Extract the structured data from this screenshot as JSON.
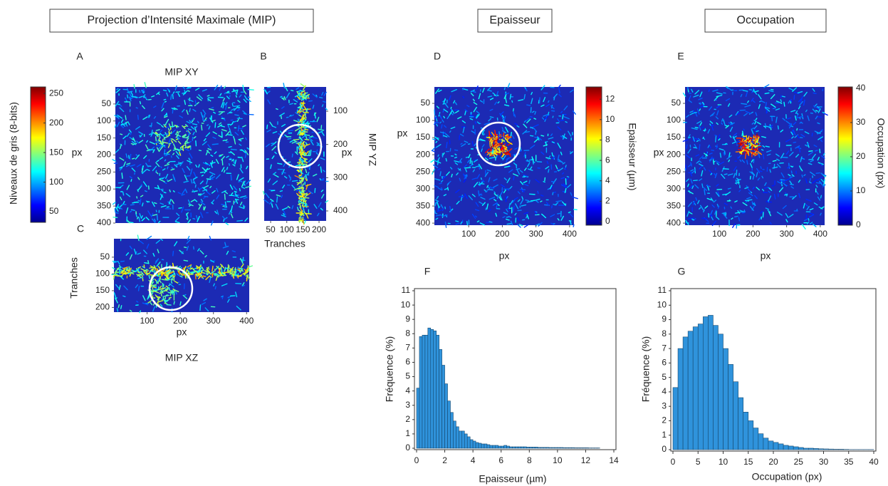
{
  "sections": [
    "Projection d’Intensité Maximale (MIP)",
    "Epaisseur",
    "Occupation"
  ],
  "chart_data": [
    {
      "type": "image",
      "panel": "A",
      "title": "MIP XY",
      "ylabel": "px",
      "ylim": [
        0,
        400
      ],
      "yticks": [
        50,
        100,
        150,
        200,
        250,
        300,
        350,
        400
      ],
      "colorbar": {
        "label": "Niveaux de gris (8-bits)",
        "lim": [
          32,
          261
        ],
        "ticks": [
          50,
          100,
          150,
          200,
          250
        ]
      }
    },
    {
      "type": "image",
      "panel": "B",
      "title": "MIP YZ",
      "ylabel": "px",
      "xlabel": "Tranches",
      "ylim": [
        27,
        430
      ],
      "yticks": [
        100,
        200,
        300,
        400
      ],
      "xlim": [
        30,
        222
      ],
      "xticks": [
        50,
        100,
        150,
        200
      ]
    },
    {
      "type": "image",
      "panel": "C",
      "title": "MIP XZ",
      "ylabel": "Tranches",
      "xlabel": "px",
      "ylim": [
        -5,
        214
      ],
      "yticks": [
        50,
        100,
        150,
        200
      ],
      "xlim": [
        0,
        408
      ],
      "xticks": [
        100,
        200,
        300,
        400
      ]
    },
    {
      "type": "image",
      "panel": "D",
      "ylabel": "px",
      "xlabel": "px",
      "ylim": [
        2,
        406
      ],
      "yticks": [
        50,
        100,
        150,
        200,
        250,
        300,
        350,
        400
      ],
      "xlim": [
        -2,
        413
      ],
      "xticks": [
        100,
        200,
        300,
        400
      ],
      "colorbar": {
        "label": "Epaisseur (µm)",
        "lim": [
          -0.35,
          13.2
        ],
        "ticks": [
          0,
          2,
          4,
          6,
          8,
          10,
          12
        ]
      }
    },
    {
      "type": "image",
      "panel": "E",
      "ylabel": "px",
      "xlabel": "px",
      "ylim": [
        2,
        406
      ],
      "yticks": [
        50,
        100,
        150,
        200,
        250,
        300,
        350,
        400
      ],
      "xlim": [
        -2,
        413
      ],
      "xticks": [
        100,
        200,
        300,
        400
      ],
      "colorbar": {
        "label": "Occupation (px)",
        "lim": [
          0,
          40.4
        ],
        "ticks": [
          0,
          10,
          20,
          30,
          40
        ]
      }
    },
    {
      "type": "histogram",
      "panel": "F",
      "xlabel": "Epaisseur (µm)",
      "ylabel": "Fréquence (%)",
      "color": "#2f93dc",
      "xlim": [
        0,
        14
      ],
      "xticks": [
        0,
        2,
        4,
        6,
        8,
        10,
        12,
        14
      ],
      "ylim": [
        0,
        11
      ],
      "yticks": [
        0,
        1,
        2,
        3,
        4,
        5,
        6,
        7,
        8,
        9,
        10,
        11
      ],
      "bins": [
        0,
        0.2,
        0.4,
        0.6,
        0.8,
        1,
        1.2,
        1.4,
        1.6,
        1.8,
        2,
        2.2,
        2.4,
        2.6,
        2.8,
        3,
        3.2,
        3.4,
        3.6,
        3.8,
        4,
        4.2,
        4.4,
        4.6,
        4.8,
        5,
        5.2,
        5.4,
        5.6,
        5.8,
        6,
        6.2,
        6.4,
        6.6,
        6.8,
        7,
        7.2,
        7.4,
        7.6,
        7.8,
        8,
        8.2,
        8.4,
        8.6,
        8.8,
        9,
        9.2,
        9.4,
        9.6,
        9.8,
        10,
        10.2,
        10.4,
        10.6,
        10.8,
        11,
        11.2,
        11.4,
        11.6,
        11.8,
        12,
        12.2,
        12.4,
        12.6,
        12.8,
        13
      ],
      "values": [
        4.2,
        7.8,
        7.9,
        7.9,
        8.4,
        8.3,
        8.2,
        7.9,
        6.9,
        5.8,
        4.5,
        3.3,
        2.5,
        1.9,
        1.5,
        1.2,
        1.2,
        1.0,
        0.8,
        0.6,
        0.5,
        0.4,
        0.35,
        0.3,
        0.3,
        0.25,
        0.2,
        0.2,
        0.2,
        0.15,
        0.15,
        0.2,
        0.15,
        0.1,
        0.1,
        0.1,
        0.1,
        0.1,
        0.1,
        0.08,
        0.08,
        0.08,
        0.08,
        0.06,
        0.06,
        0.06,
        0.06,
        0.05,
        0.05,
        0.05,
        0.05,
        0.05,
        0.04,
        0.04,
        0.04,
        0.04,
        0.03,
        0.03,
        0.03,
        0.03,
        0.03,
        0.02,
        0.02,
        0.02,
        0.02
      ]
    },
    {
      "type": "histogram",
      "panel": "G",
      "xlabel": "Occupation (px)",
      "ylabel": "Fréquence (%)",
      "color": "#2f93dc",
      "xlim": [
        0,
        40
      ],
      "xticks": [
        0,
        5,
        10,
        15,
        20,
        25,
        30,
        35,
        40
      ],
      "ylim": [
        0,
        11
      ],
      "yticks": [
        0,
        1,
        2,
        3,
        4,
        5,
        6,
        7,
        8,
        9,
        10,
        11
      ],
      "bins": [
        0,
        1,
        2,
        3,
        4,
        5,
        6,
        7,
        8,
        9,
        10,
        11,
        12,
        13,
        14,
        15,
        16,
        17,
        18,
        19,
        20,
        21,
        22,
        23,
        24,
        25,
        26,
        27,
        28,
        29,
        30,
        31,
        32,
        33,
        34,
        35,
        36,
        37,
        38,
        39,
        40
      ],
      "values": [
        4.3,
        7.0,
        7.8,
        8.2,
        8.5,
        8.7,
        9.2,
        9.3,
        8.6,
        8.0,
        7.0,
        5.9,
        4.7,
        3.6,
        2.6,
        2.0,
        1.5,
        1.1,
        0.8,
        0.6,
        0.5,
        0.4,
        0.3,
        0.25,
        0.2,
        0.15,
        0.1,
        0.1,
        0.08,
        0.06,
        0.05,
        0.04,
        0.03,
        0.03,
        0.02,
        0.01,
        0.01,
        0.01,
        0.01,
        0.01
      ]
    }
  ]
}
